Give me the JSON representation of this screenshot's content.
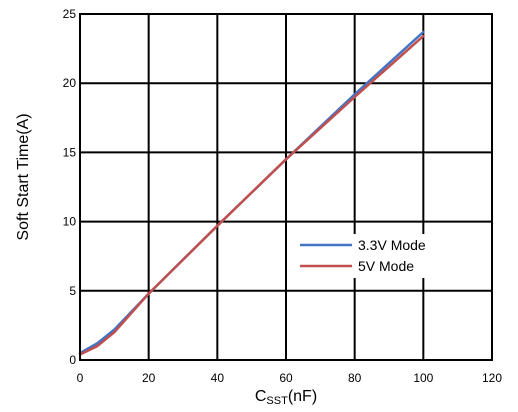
{
  "chart_data": {
    "type": "line",
    "xlabel": "C",
    "xlabel_subscript": "SST",
    "xlabel_suffix": "(nF)",
    "ylabel": "Soft Start Time(A)",
    "xlim": [
      0,
      120
    ],
    "ylim": [
      0,
      25
    ],
    "xticks": [
      0,
      20,
      40,
      60,
      80,
      100,
      120
    ],
    "yticks": [
      0,
      5,
      10,
      15,
      20,
      25
    ],
    "grid": true,
    "legend_position": "lower-right",
    "series": [
      {
        "name": "3.3V Mode",
        "color": "#4472C4",
        "x": [
          0,
          5,
          10,
          20,
          40,
          60,
          80,
          100
        ],
        "y": [
          0.5,
          1.2,
          2.2,
          4.8,
          9.7,
          14.5,
          19.2,
          23.7
        ]
      },
      {
        "name": "5V Mode",
        "color": "#C0504D",
        "x": [
          0,
          5,
          10,
          20,
          40,
          60,
          80,
          100
        ],
        "y": [
          0.4,
          1.0,
          2.0,
          4.8,
          9.7,
          14.5,
          19.0,
          23.4
        ]
      }
    ]
  }
}
